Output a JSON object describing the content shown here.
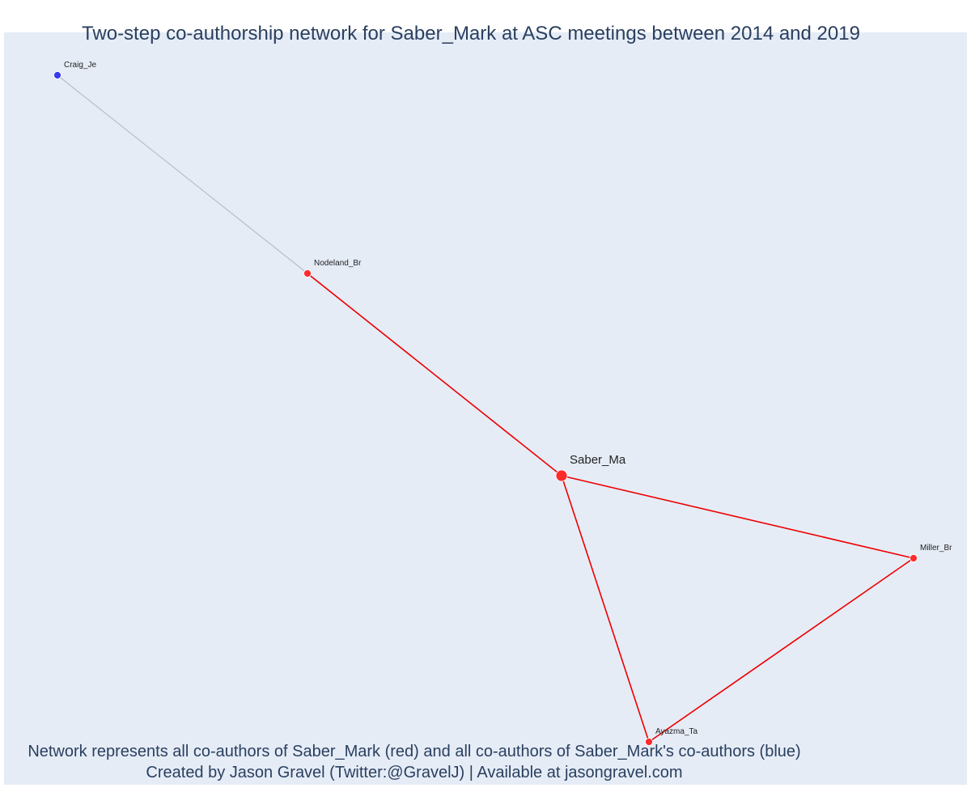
{
  "title": "Two-step co-authorship network for Saber_Mark at ASC meetings between 2014 and 2019",
  "captions": [
    "Network represents all co-authors of Saber_Mark (red) and all co-authors of Saber_Mark's co-authors (blue)",
    "Created by Jason Gravel (Twitter:@GravelJ) | Available at jasongravel.com"
  ],
  "colors": {
    "background": "#e5ecf6",
    "first_degree": "#ff2a2a",
    "second_degree": "#3a3af0",
    "first_degree_edge": "#ee0000",
    "second_degree_edge": "#b8bccc",
    "text": "#2a3f5f"
  },
  "network": {
    "focal": "Saber_Ma",
    "nodes": [
      {
        "id": "Saber_Ma",
        "label": "Saber_Ma",
        "group": "focal"
      },
      {
        "id": "Nodeland_Br",
        "label": "Nodeland_Br",
        "group": "first"
      },
      {
        "id": "Miller_Br",
        "label": "Miller_Br",
        "group": "first"
      },
      {
        "id": "Ayazma_Ta",
        "label": "Ayazma_Ta",
        "group": "first"
      },
      {
        "id": "Craig_Je",
        "label": "Craig_Je",
        "group": "second"
      }
    ],
    "edges": [
      {
        "source": "Saber_Ma",
        "target": "Nodeland_Br",
        "group": "first"
      },
      {
        "source": "Saber_Ma",
        "target": "Miller_Br",
        "group": "first"
      },
      {
        "source": "Saber_Ma",
        "target": "Ayazma_Ta",
        "group": "first"
      },
      {
        "source": "Miller_Br",
        "target": "Ayazma_Ta",
        "group": "first"
      },
      {
        "source": "Nodeland_Br",
        "target": "Craig_Je",
        "group": "second"
      }
    ]
  }
}
